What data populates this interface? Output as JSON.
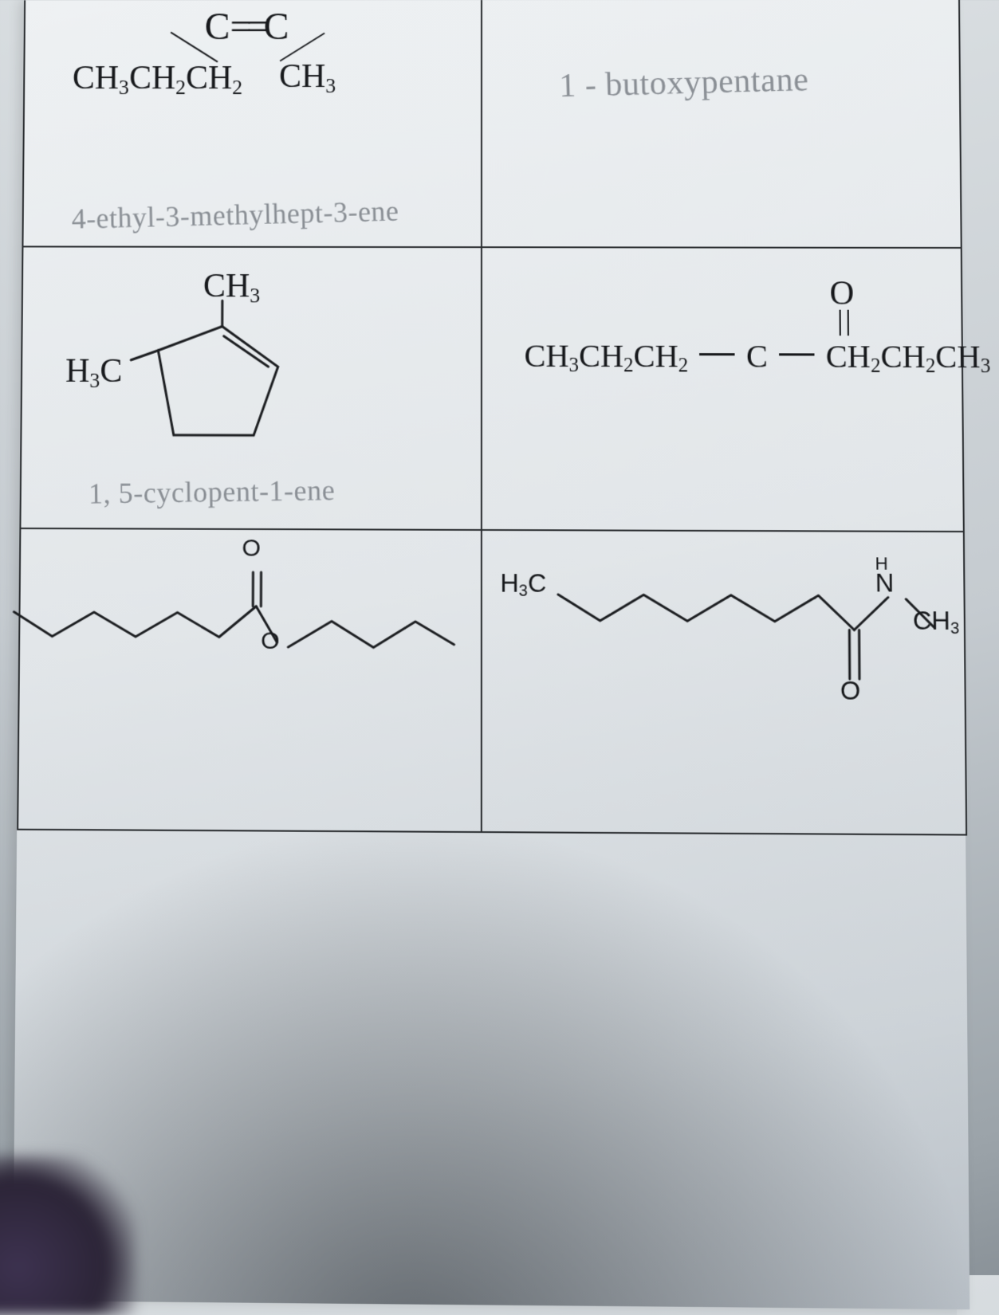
{
  "stroke": "#1c1e21",
  "handColor": "#8a8f95",
  "row1": {
    "left": {
      "cc": "C═C",
      "propyl": "CH₃CH₂CH₂",
      "ch3": "CH₃",
      "answer": "4-ethyl-3-methylhept-3-ene"
    },
    "right": {
      "answer": "1 - butoxypentane"
    }
  },
  "row2": {
    "left": {
      "h3c": "H₃C",
      "ch3": "CH₃",
      "answer": "1, 5-cyclopent-1-ene"
    },
    "right": {
      "o": "O",
      "formula_left": "CH₃CH₂CH₂",
      "formula_c": "C",
      "formula_right": "CH₂CH₂CH₃"
    }
  },
  "row3": {
    "left": {
      "o1": "O",
      "o2": "O"
    },
    "right": {
      "h3c": "H₃C",
      "ch3": "CH₃",
      "o": "O",
      "nh": "H\nN"
    }
  }
}
